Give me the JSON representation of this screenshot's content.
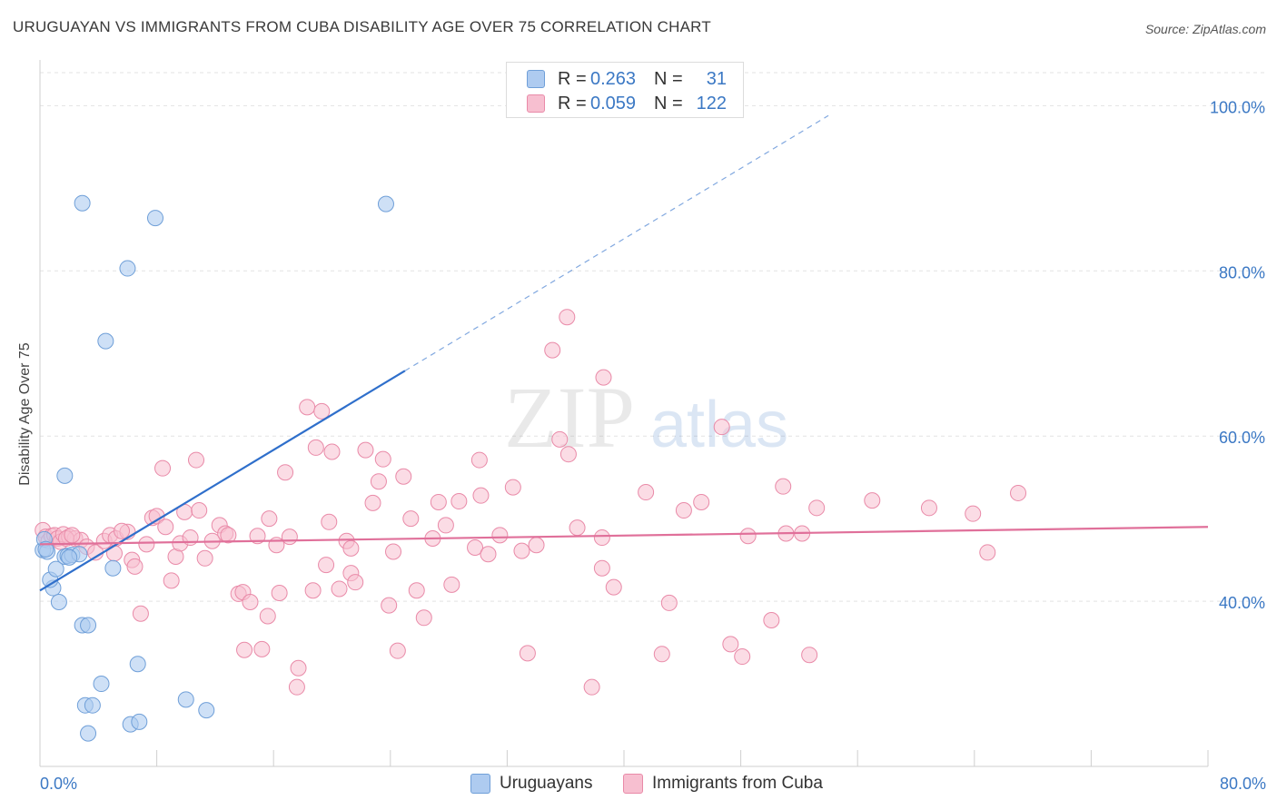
{
  "title": "URUGUAYAN VS IMMIGRANTS FROM CUBA DISABILITY AGE OVER 75 CORRELATION CHART",
  "source": "Source: ZipAtlas.com",
  "watermark": {
    "zip": "ZIP",
    "atlas": "atlas"
  },
  "colors": {
    "blue_fill": "#aecbf0",
    "blue_stroke": "#6f9fd8",
    "blue_line": "#2f6fcb",
    "pink_fill": "#f7bfd0",
    "pink_stroke": "#e98aa8",
    "pink_line": "#e0709a",
    "axis_text": "#3b78c4",
    "grid": "#e3e3e3"
  },
  "legend": [
    {
      "r_label": "R =",
      "r_value": "0.263",
      "n_label": "N =",
      "n_value": "31"
    },
    {
      "r_label": "R =",
      "r_value": "0.059",
      "n_label": "N =",
      "n_value": "122"
    }
  ],
  "bottom_legend": [
    "Uruguayans",
    "Immigrants from Cuba"
  ],
  "chart_data": {
    "type": "scatter",
    "title": "URUGUAYAN VS IMMIGRANTS FROM CUBA DISABILITY AGE OVER 75 CORRELATION CHART",
    "xlabel": "",
    "ylabel": "Disability Age Over 75",
    "xlim": [
      0,
      80
    ],
    "ylim": [
      20,
      104
    ],
    "x_tick_labels": [
      "0.0%",
      "80.0%"
    ],
    "y_tick_labels": [
      "40.0%",
      "60.0%",
      "80.0%",
      "100.0%"
    ],
    "y_ticks": [
      40,
      60,
      80,
      100
    ],
    "grid": true,
    "legend_position": "top-center",
    "series": [
      {
        "name": "Uruguayans",
        "color": "#aecbf0",
        "trend": {
          "x": [
            0,
            25
          ],
          "y": [
            41.3,
            67.9
          ],
          "dashed_to": [
            54,
            98.8
          ]
        },
        "points": [
          [
            0.2,
            46.2
          ],
          [
            0.3,
            47.5
          ],
          [
            0.5,
            46.0
          ],
          [
            0.9,
            41.6
          ],
          [
            0.7,
            42.6
          ],
          [
            1.1,
            43.9
          ],
          [
            1.3,
            39.9
          ],
          [
            1.7,
            45.4
          ],
          [
            1.9,
            45.5
          ],
          [
            2.2,
            45.6
          ],
          [
            2.7,
            45.7
          ],
          [
            1.7,
            55.2
          ],
          [
            2.9,
            88.2
          ],
          [
            4.5,
            71.5
          ],
          [
            6.0,
            80.3
          ],
          [
            7.9,
            86.4
          ],
          [
            23.7,
            88.1
          ],
          [
            2.9,
            37.1
          ],
          [
            3.3,
            37.1
          ],
          [
            5.0,
            44.0
          ],
          [
            4.2,
            30.0
          ],
          [
            3.1,
            27.4
          ],
          [
            3.6,
            27.4
          ],
          [
            3.3,
            24.0
          ],
          [
            6.7,
            32.4
          ],
          [
            6.2,
            25.1
          ],
          [
            6.8,
            25.4
          ],
          [
            10.0,
            28.1
          ],
          [
            11.4,
            26.8
          ],
          [
            2.0,
            45.3
          ],
          [
            0.4,
            46.3
          ]
        ]
      },
      {
        "name": "Immigrants from Cuba",
        "color": "#f7bfd0",
        "trend": {
          "x": [
            0,
            80
          ],
          "y": [
            46.9,
            49.0
          ]
        },
        "points": [
          [
            0.2,
            48.6
          ],
          [
            0.4,
            47.8
          ],
          [
            0.6,
            47.3
          ],
          [
            0.8,
            47.9
          ],
          [
            1.0,
            48.0
          ],
          [
            1.2,
            47.6
          ],
          [
            1.4,
            47.2
          ],
          [
            1.6,
            48.1
          ],
          [
            2.0,
            47.8
          ],
          [
            2.4,
            47.6
          ],
          [
            2.8,
            47.4
          ],
          [
            3.2,
            46.6
          ],
          [
            3.8,
            45.9
          ],
          [
            4.4,
            47.3
          ],
          [
            4.8,
            48.0
          ],
          [
            5.2,
            47.6
          ],
          [
            6.0,
            48.4
          ],
          [
            6.3,
            45.0
          ],
          [
            6.5,
            44.2
          ],
          [
            6.9,
            38.5
          ],
          [
            7.3,
            46.9
          ],
          [
            7.7,
            50.1
          ],
          [
            8.0,
            50.3
          ],
          [
            8.4,
            56.1
          ],
          [
            9.0,
            42.5
          ],
          [
            9.3,
            45.4
          ],
          [
            9.6,
            47.0
          ],
          [
            9.9,
            50.8
          ],
          [
            10.3,
            47.7
          ],
          [
            10.7,
            57.1
          ],
          [
            10.9,
            51.0
          ],
          [
            11.3,
            45.2
          ],
          [
            11.8,
            47.3
          ],
          [
            12.3,
            49.2
          ],
          [
            12.7,
            48.2
          ],
          [
            12.9,
            48.0
          ],
          [
            13.6,
            40.9
          ],
          [
            13.9,
            41.1
          ],
          [
            14.0,
            34.1
          ],
          [
            14.4,
            39.9
          ],
          [
            15.2,
            34.2
          ],
          [
            15.6,
            38.2
          ],
          [
            15.7,
            50.0
          ],
          [
            16.2,
            46.8
          ],
          [
            16.4,
            41.0
          ],
          [
            16.8,
            55.6
          ],
          [
            17.1,
            47.8
          ],
          [
            17.7,
            31.9
          ],
          [
            17.6,
            29.6
          ],
          [
            18.3,
            63.5
          ],
          [
            18.7,
            41.3
          ],
          [
            18.9,
            58.6
          ],
          [
            19.3,
            63.0
          ],
          [
            19.6,
            44.4
          ],
          [
            19.8,
            49.6
          ],
          [
            20.0,
            58.1
          ],
          [
            20.5,
            41.5
          ],
          [
            21.0,
            47.3
          ],
          [
            21.3,
            43.4
          ],
          [
            21.6,
            42.3
          ],
          [
            21.3,
            46.4
          ],
          [
            22.3,
            58.3
          ],
          [
            22.8,
            51.9
          ],
          [
            23.2,
            54.5
          ],
          [
            23.5,
            57.2
          ],
          [
            23.9,
            39.5
          ],
          [
            24.2,
            46.0
          ],
          [
            24.5,
            34.0
          ],
          [
            24.9,
            55.1
          ],
          [
            25.4,
            50.0
          ],
          [
            25.8,
            41.3
          ],
          [
            26.3,
            38.0
          ],
          [
            27.3,
            52.0
          ],
          [
            27.8,
            49.2
          ],
          [
            28.2,
            42.0
          ],
          [
            28.7,
            52.1
          ],
          [
            29.8,
            46.5
          ],
          [
            30.2,
            52.8
          ],
          [
            30.1,
            57.1
          ],
          [
            30.7,
            45.7
          ],
          [
            31.5,
            48.0
          ],
          [
            32.4,
            53.8
          ],
          [
            33.0,
            46.1
          ],
          [
            33.4,
            33.7
          ],
          [
            34.0,
            46.8
          ],
          [
            35.6,
            59.6
          ],
          [
            35.1,
            70.4
          ],
          [
            36.1,
            74.4
          ],
          [
            36.2,
            57.8
          ],
          [
            36.8,
            48.9
          ],
          [
            37.8,
            29.6
          ],
          [
            38.5,
            44.0
          ],
          [
            38.5,
            47.7
          ],
          [
            38.6,
            67.1
          ],
          [
            39.3,
            41.7
          ],
          [
            41.5,
            53.2
          ],
          [
            42.6,
            33.6
          ],
          [
            43.1,
            39.8
          ],
          [
            44.1,
            51.0
          ],
          [
            45.3,
            52.0
          ],
          [
            46.7,
            61.1
          ],
          [
            47.3,
            34.8
          ],
          [
            48.1,
            33.3
          ],
          [
            48.5,
            47.9
          ],
          [
            50.1,
            37.7
          ],
          [
            50.9,
            53.9
          ],
          [
            51.1,
            48.2
          ],
          [
            52.2,
            48.2
          ],
          [
            52.7,
            33.5
          ],
          [
            53.2,
            51.3
          ],
          [
            57.0,
            52.2
          ],
          [
            60.9,
            51.3
          ],
          [
            63.9,
            50.6
          ],
          [
            64.9,
            45.9
          ],
          [
            67.0,
            53.1
          ],
          [
            1.8,
            47.6
          ],
          [
            2.2,
            48.0
          ],
          [
            5.6,
            48.5
          ],
          [
            5.1,
            45.8
          ],
          [
            8.6,
            49.0
          ],
          [
            14.9,
            47.9
          ],
          [
            26.9,
            47.6
          ]
        ]
      }
    ]
  }
}
